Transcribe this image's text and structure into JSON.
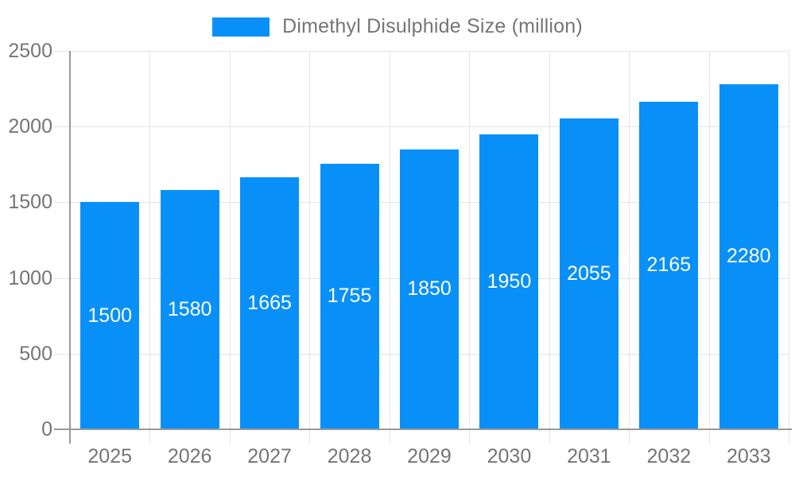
{
  "chart_data": {
    "type": "bar",
    "legend_label": "Dimethyl Disulphide Size (million)",
    "categories": [
      "2025",
      "2026",
      "2027",
      "2028",
      "2029",
      "2030",
      "2031",
      "2032",
      "2033"
    ],
    "values": [
      1500,
      1580,
      1665,
      1755,
      1850,
      1950,
      2055,
      2165,
      2280
    ],
    "value_labels": [
      "1500",
      "1580",
      "1665",
      "1755",
      "1850",
      "1950",
      "2055",
      "2165",
      "2280"
    ],
    "ytick_labels": [
      "0",
      "500",
      "1000",
      "1500",
      "2000",
      "2500"
    ],
    "yticks": [
      0,
      500,
      1000,
      1500,
      2000,
      2500
    ],
    "ylim": [
      0,
      2500
    ],
    "xlabel": "",
    "ylabel": "",
    "grid": true,
    "legend_position": "top-center",
    "colors": {
      "bar": "#0990f8",
      "bar_value_text": "#ffffff",
      "axis_line": "#999999",
      "gridline": "#e4e4e4",
      "axis_text": "#757575",
      "legend_text": "#757575",
      "background": "#ffffff"
    }
  }
}
